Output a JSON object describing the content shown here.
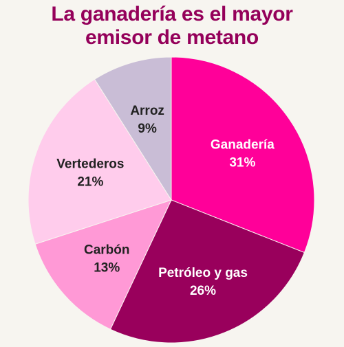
{
  "title_lines": [
    "La ganadería es el mayor",
    "emisor de metano"
  ],
  "chart_data": {
    "type": "pie",
    "title": "La ganadería es el mayor emisor de metano",
    "slices": [
      {
        "label": "Ganadería",
        "value": 31,
        "value_label": "31%",
        "color": "#ff0099",
        "text_color": "#ffffff"
      },
      {
        "label": "Petróleo y gas",
        "value": 26,
        "value_label": "26%",
        "color": "#99005c",
        "text_color": "#ffffff"
      },
      {
        "label": "Carbón",
        "value": 13,
        "value_label": "13%",
        "color": "#ff99d6",
        "text_color": "#222222"
      },
      {
        "label": "Vertederos",
        "value": 21,
        "value_label": "21%",
        "color": "#ffccec",
        "text_color": "#222222"
      },
      {
        "label": "Arroz",
        "value": 9,
        "value_label": "9%",
        "color": "#c9bdd6",
        "text_color": "#222222"
      }
    ],
    "start_angle": "12 o'clock",
    "direction": "clockwise",
    "legend": "none"
  }
}
